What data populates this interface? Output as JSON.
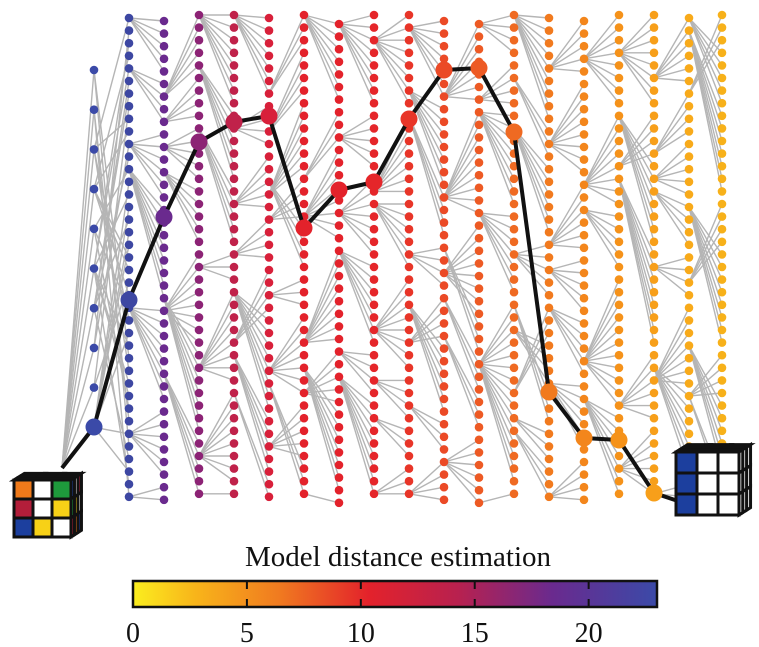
{
  "colorbar": {
    "label": "Model distance estimation",
    "range": [
      0,
      23
    ],
    "ticks": [
      0,
      5,
      10,
      15,
      20
    ]
  }
}
